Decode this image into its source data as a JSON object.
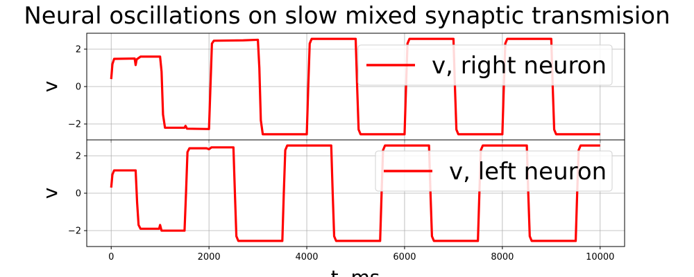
{
  "chart_data": {
    "type": "line",
    "title": "Neural oscillations on slow mixed synaptic transmision",
    "xlabel": "t, ms",
    "xlim": [
      -500,
      10500
    ],
    "xticks": [
      0,
      2000,
      4000,
      6000,
      8000,
      10000
    ],
    "grid": true,
    "legend_position": "top-right",
    "panels": [
      {
        "ylabel": "v",
        "ylim": [
          -2.85,
          2.85
        ],
        "yticks": [
          -2,
          0,
          2
        ],
        "series": [
          {
            "name": "v, right neuron",
            "color": "#ff0000",
            "points": [
              [
                0,
                0.4
              ],
              [
                25,
                1.2
              ],
              [
                60,
                1.48
              ],
              [
                480,
                1.5
              ],
              [
                500,
                1.15
              ],
              [
                520,
                1.45
              ],
              [
                600,
                1.6
              ],
              [
                1000,
                1.6
              ],
              [
                1030,
                0.8
              ],
              [
                1060,
                -1.5
              ],
              [
                1100,
                -2.2
              ],
              [
                1500,
                -2.2
              ],
              [
                1520,
                -2.1
              ],
              [
                1550,
                -2.25
              ],
              [
                2000,
                -2.27
              ],
              [
                2030,
                0.0
              ],
              [
                2060,
                2.3
              ],
              [
                2100,
                2.45
              ],
              [
                2700,
                2.47
              ],
              [
                3000,
                2.5
              ],
              [
                3030,
                1.0
              ],
              [
                3060,
                -1.8
              ],
              [
                3100,
                -2.55
              ],
              [
                4000,
                -2.55
              ],
              [
                4030,
                0.0
              ],
              [
                4060,
                2.3
              ],
              [
                4100,
                2.55
              ],
              [
                5000,
                2.55
              ],
              [
                5030,
                0.0
              ],
              [
                5060,
                -2.3
              ],
              [
                5100,
                -2.55
              ],
              [
                6000,
                -2.55
              ],
              [
                6030,
                0.0
              ],
              [
                6060,
                2.3
              ],
              [
                6100,
                2.55
              ],
              [
                7000,
                2.55
              ],
              [
                7030,
                0.0
              ],
              [
                7060,
                -2.3
              ],
              [
                7100,
                -2.55
              ],
              [
                8000,
                -2.55
              ],
              [
                8030,
                0.0
              ],
              [
                8060,
                2.3
              ],
              [
                8100,
                2.55
              ],
              [
                9000,
                2.55
              ],
              [
                9030,
                0.0
              ],
              [
                9060,
                -2.3
              ],
              [
                9100,
                -2.55
              ],
              [
                10000,
                -2.55
              ]
            ]
          }
        ]
      },
      {
        "ylabel": "v",
        "ylim": [
          -2.85,
          2.85
        ],
        "yticks": [
          -2,
          0,
          2
        ],
        "series": [
          {
            "name": "v, left neuron",
            "color": "#ff0000",
            "points": [
              [
                0,
                0.3
              ],
              [
                25,
                1.0
              ],
              [
                60,
                1.22
              ],
              [
                500,
                1.22
              ],
              [
                530,
                -0.5
              ],
              [
                560,
                -1.7
              ],
              [
                600,
                -1.9
              ],
              [
                980,
                -1.9
              ],
              [
                1000,
                -1.7
              ],
              [
                1030,
                -2.0
              ],
              [
                1500,
                -2.0
              ],
              [
                1530,
                0.0
              ],
              [
                1560,
                2.2
              ],
              [
                1600,
                2.4
              ],
              [
                1950,
                2.4
              ],
              [
                2000,
                2.35
              ],
              [
                2050,
                2.45
              ],
              [
                2500,
                2.45
              ],
              [
                2530,
                0.0
              ],
              [
                2560,
                -2.3
              ],
              [
                2600,
                -2.55
              ],
              [
                3500,
                -2.55
              ],
              [
                3530,
                0.0
              ],
              [
                3560,
                2.3
              ],
              [
                3600,
                2.55
              ],
              [
                4500,
                2.55
              ],
              [
                4530,
                0.0
              ],
              [
                4560,
                -2.3
              ],
              [
                4600,
                -2.55
              ],
              [
                5500,
                -2.55
              ],
              [
                5530,
                0.0
              ],
              [
                5560,
                2.3
              ],
              [
                5600,
                2.55
              ],
              [
                6500,
                2.55
              ],
              [
                6530,
                0.0
              ],
              [
                6560,
                -2.3
              ],
              [
                6600,
                -2.55
              ],
              [
                7500,
                -2.55
              ],
              [
                7530,
                0.0
              ],
              [
                7560,
                2.3
              ],
              [
                7600,
                2.55
              ],
              [
                8500,
                2.55
              ],
              [
                8530,
                0.0
              ],
              [
                8560,
                -2.3
              ],
              [
                8600,
                -2.55
              ],
              [
                9500,
                -2.55
              ],
              [
                9530,
                0.0
              ],
              [
                9560,
                2.3
              ],
              [
                9600,
                2.55
              ],
              [
                10000,
                2.55
              ]
            ]
          }
        ]
      }
    ]
  }
}
